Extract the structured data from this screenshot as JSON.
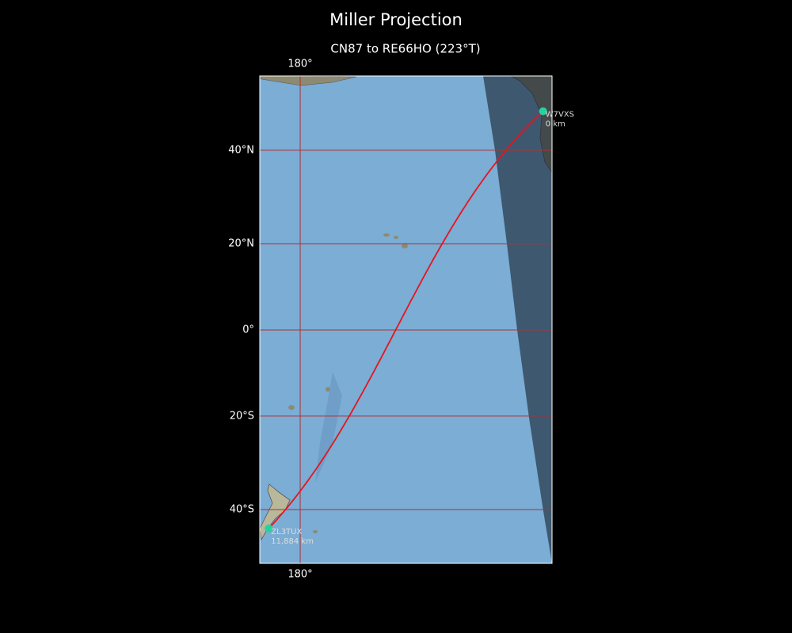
{
  "map": {
    "title": "Miller Projection",
    "subtitle": "CN87 to RE66HO (223°T)",
    "projection": "miller",
    "xlim": [
      170.5,
      239.2
    ],
    "ylim": [
      -50.2,
      53.8
    ],
    "lon_ticks": [
      {
        "value": 180,
        "label": "180°"
      }
    ],
    "lat_ticks": [
      {
        "value": 40,
        "label": "40°N"
      },
      {
        "value": 20,
        "label": "20°N"
      },
      {
        "value": 0,
        "label": "0°"
      },
      {
        "value": -20,
        "label": "20°S"
      },
      {
        "value": -40,
        "label": "40°S"
      }
    ],
    "grid_color": "#b03030",
    "route_color": "#e8141c",
    "station_color": "#22d3a0",
    "stations": [
      {
        "name": "W7VXS",
        "lon": 237.1,
        "lat": 47.5,
        "distance": {
          "value": 0,
          "label": "0 km"
        }
      },
      {
        "name": "ZL3TUX",
        "lon": 172.6,
        "lat": -43.7,
        "distance": {
          "value": 11884,
          "label": "11,884 km"
        }
      }
    ]
  }
}
